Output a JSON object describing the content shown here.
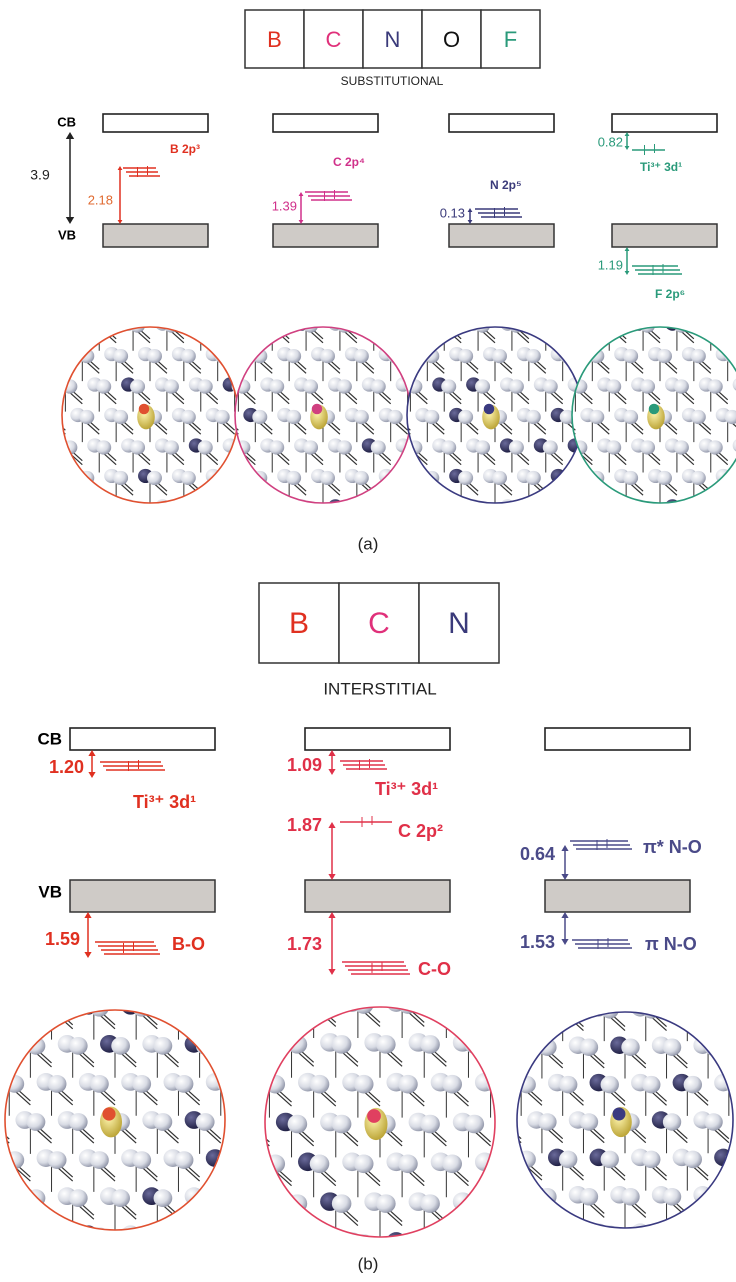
{
  "panel_a": {
    "elements": [
      "B",
      "C",
      "N",
      "O",
      "F"
    ],
    "type_label": "SUBSTITUTIONAL",
    "cb_label": "CB",
    "vb_label": "VB",
    "gap": "3.9",
    "columns": [
      {
        "states": [
          {
            "energy": "2.18",
            "label": "B 2p³"
          }
        ]
      },
      {
        "states": [
          {
            "energy": "1.39",
            "label": "C 2p⁴"
          }
        ]
      },
      {
        "states": [
          {
            "energy": "0.13",
            "label": "N 2p⁵"
          }
        ]
      },
      {
        "states": [
          {
            "energy": "0.82",
            "label": "Ti³⁺ 3d¹"
          },
          {
            "energy": "1.19",
            "label": "F 2p⁶"
          }
        ]
      }
    ],
    "caption": "(a)"
  },
  "panel_b": {
    "elements": [
      "B",
      "C",
      "N"
    ],
    "type_label": "INTERSTITIAL",
    "cb_label": "CB",
    "vb_label": "VB",
    "columns": [
      {
        "states": [
          {
            "energy": "1.20",
            "label": "Ti³⁺ 3d¹"
          },
          {
            "energy": "1.59",
            "label": "B-O"
          }
        ]
      },
      {
        "states": [
          {
            "energy": "1.09",
            "label": "Ti³⁺ 3d¹"
          },
          {
            "energy": "1.87",
            "label": "C 2p²"
          },
          {
            "energy": "1.73",
            "label": "C-O"
          }
        ]
      },
      {
        "states": [
          {
            "energy": "0.64",
            "label": "π* N-O"
          },
          {
            "energy": "1.53",
            "label": "π N-O"
          }
        ]
      }
    ],
    "caption": "(b)"
  }
}
